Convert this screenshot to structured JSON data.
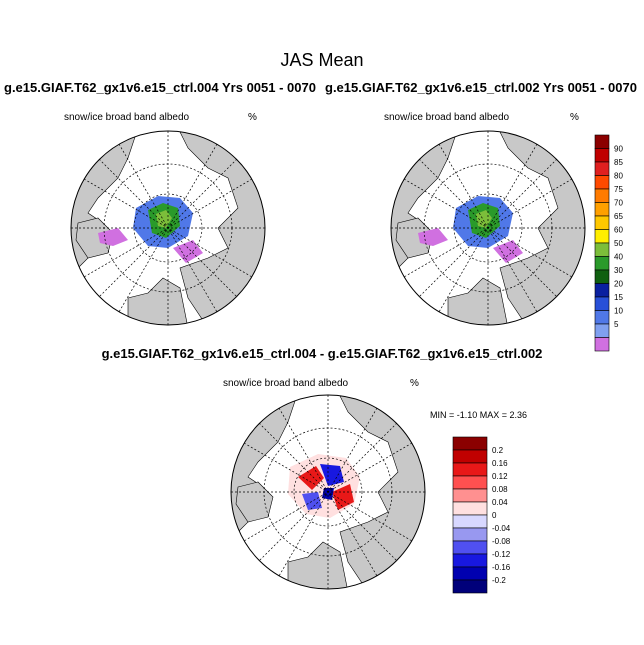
{
  "header": {
    "title": "JAS Mean",
    "left_run": "g.e15.GIAF.T62_gx1v6.e15_ctrl.004  Yrs 0051 - 0070",
    "right_run": "g.e15.GIAF.T62_gx1v6.e15_ctrl.002  Yrs 0051 - 0070",
    "diff_title": "g.e15.GIAF.T62_gx1v6.e15_ctrl.004 - g.e15.GIAF.T62_gx1v6.e15_ctrl.002"
  },
  "panels": {
    "left": {
      "variable": "snow/ice broad band albedo",
      "units": "%"
    },
    "right": {
      "variable": "snow/ice broad band albedo",
      "units": "%"
    },
    "diff": {
      "variable": "snow/ice broad band albedo",
      "units": "%",
      "minmax": "MIN =  -1.10 MAX =   2.36"
    }
  },
  "colorbars": {
    "albedo": {
      "labels": [
        "90",
        "85",
        "80",
        "75",
        "70",
        "65",
        "60",
        "50",
        "40",
        "30",
        "20",
        "15",
        "10",
        "5"
      ],
      "colors": [
        "#8b0000",
        "#c00000",
        "#e02020",
        "#ff4a00",
        "#ff7b00",
        "#ffa000",
        "#ffc800",
        "#ffee00",
        "#7cbe3a",
        "#2a9a2a",
        "#106010",
        "#0a20a0",
        "#2850d8",
        "#5078e8",
        "#80a0f0",
        "#d070e0"
      ]
    },
    "diff": {
      "labels": [
        "0.2",
        "0.16",
        "0.12",
        "0.08",
        "0.04",
        "0",
        "-0.04",
        "-0.08",
        "-0.12",
        "-0.16",
        "-0.2"
      ],
      "colors": [
        "#8b0000",
        "#c00000",
        "#e81818",
        "#ff5050",
        "#ff9090",
        "#ffe0e0",
        "#d8d8ff",
        "#9898f0",
        "#5050f0",
        "#1818e0",
        "#0000b0",
        "#00007a"
      ]
    }
  }
}
